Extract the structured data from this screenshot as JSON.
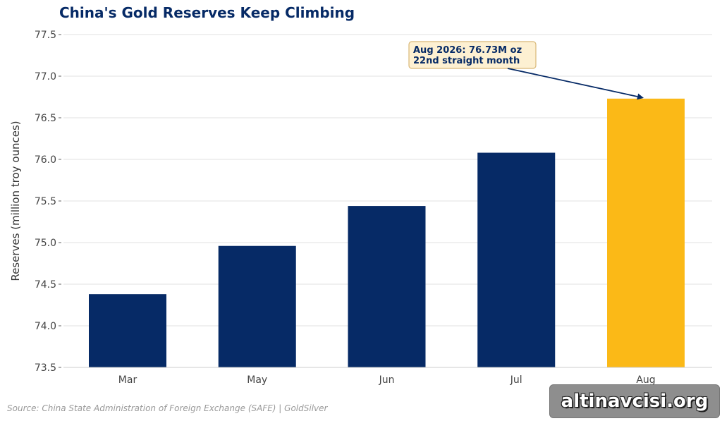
{
  "chart_data": {
    "type": "bar",
    "title": "China's Gold Reserves Keep Climbing",
    "ylabel": "Reserves (million troy ounces)",
    "categories": [
      "Mar",
      "May",
      "Jun",
      "Jul",
      "Aug"
    ],
    "values": [
      74.38,
      74.96,
      75.44,
      76.08,
      76.73
    ],
    "ylim": [
      73.5,
      77.5
    ],
    "yticks": [
      "73.5",
      "74.0",
      "74.5",
      "75.0",
      "75.5",
      "76.0",
      "76.5",
      "77.0",
      "77.5"
    ],
    "grid": "horizontal",
    "colors": {
      "bar": "#062a66",
      "highlight_bar": "#fbb917",
      "title": "#062a66",
      "annotation_box": "#fdf0d2",
      "annotation_border": "#d9b877",
      "grid": "#e2e2e2"
    },
    "highlight_index": 4,
    "annotation": {
      "line1": "Aug 2026: 76.73M oz",
      "line2": "22nd straight month",
      "target_category": "Aug",
      "target_value": 76.73
    }
  },
  "source": "Source: China State Administration of Foreign Exchange (SAFE) | GoldSilver",
  "watermark": "altinavcisi.org"
}
